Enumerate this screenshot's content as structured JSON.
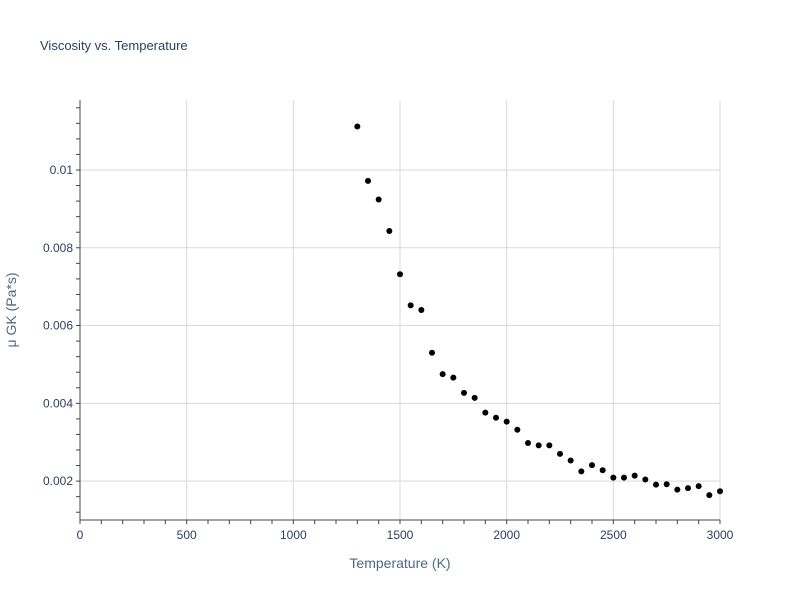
{
  "chart_data": {
    "type": "scatter",
    "title": "Viscosity vs. Temperature",
    "xlabel": "Temperature (K)",
    "ylabel": "μ GK (Pa*s)",
    "xlim": [
      0,
      3000
    ],
    "ylim": [
      0.001,
      0.0118
    ],
    "xticks": [
      0,
      500,
      1000,
      1500,
      2000,
      2500,
      3000
    ],
    "xtick_labels": [
      "0",
      "500",
      "1000",
      "1500",
      "2000",
      "2500",
      "3000"
    ],
    "yticks": [
      0.002,
      0.004,
      0.006,
      0.008,
      0.01
    ],
    "ytick_labels": [
      "0.002",
      "0.004",
      "0.006",
      "0.008",
      "0.01"
    ],
    "grid": true,
    "marker_color": "#000000",
    "grid_color": "#d9d9d9",
    "axis_color": "#444444",
    "x": [
      1300,
      1350,
      1400,
      1450,
      1500,
      1550,
      1600,
      1650,
      1700,
      1750,
      1800,
      1850,
      1900,
      1950,
      2000,
      2050,
      2100,
      2150,
      2200,
      2250,
      2300,
      2350,
      2400,
      2450,
      2500,
      2550,
      2600,
      2650,
      2700,
      2750,
      2800,
      2850,
      2900,
      2950,
      3000
    ],
    "y": [
      0.01112,
      0.00972,
      0.00924,
      0.00843,
      0.00732,
      0.00652,
      0.0064,
      0.0053,
      0.00475,
      0.00466,
      0.00427,
      0.00414,
      0.00376,
      0.00363,
      0.00353,
      0.00332,
      0.00298,
      0.00292,
      0.00292,
      0.0027,
      0.00253,
      0.00225,
      0.00241,
      0.00228,
      0.00209,
      0.00209,
      0.00214,
      0.00204,
      0.00191,
      0.00192,
      0.00178,
      0.00182,
      0.00187,
      0.00164,
      0.00174
    ]
  }
}
